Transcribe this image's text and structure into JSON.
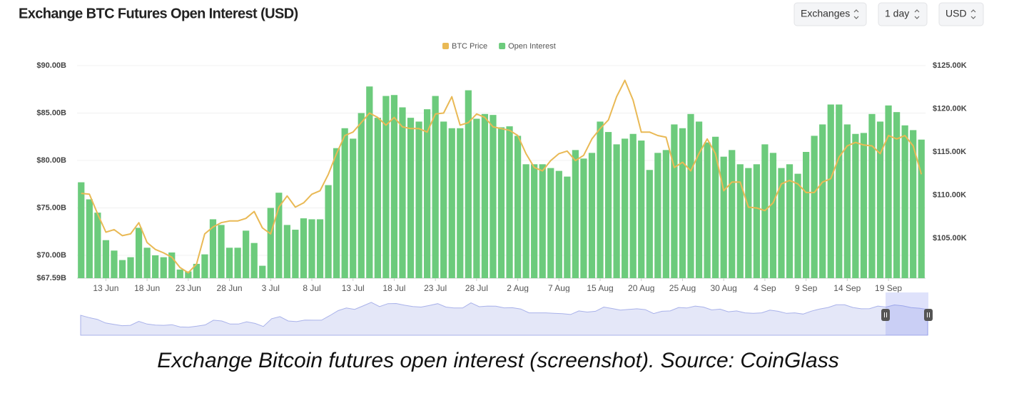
{
  "header": {
    "title": "Exchange BTC Futures Open Interest (USD)",
    "controls": [
      "Exchanges",
      "1 day",
      "USD"
    ]
  },
  "chart_data": {
    "type": "bar",
    "categories": [
      null,
      null,
      null,
      "13 Jun",
      null,
      null,
      null,
      null,
      "18 Jun",
      null,
      null,
      null,
      null,
      "23 Jun",
      null,
      null,
      null,
      null,
      "28 Jun",
      null,
      null,
      null,
      null,
      "3 Jul",
      null,
      null,
      null,
      null,
      "8 Jul",
      null,
      null,
      null,
      null,
      "13 Jul",
      null,
      null,
      null,
      null,
      "18 Jul",
      null,
      null,
      null,
      null,
      "23 Jul",
      null,
      null,
      null,
      null,
      "28 Jul",
      null,
      null,
      null,
      null,
      "2 Aug",
      null,
      null,
      null,
      null,
      "7 Aug",
      null,
      null,
      null,
      null,
      "15 Aug",
      null,
      null,
      null,
      null,
      "20 Aug",
      null,
      null,
      null,
      null,
      "25 Aug",
      null,
      null,
      null,
      null,
      "30 Aug",
      null,
      null,
      null,
      null,
      "4 Sep",
      null,
      null,
      null,
      null,
      "9 Sep",
      null,
      null,
      null,
      null,
      "14 Sep",
      null,
      null,
      null,
      null,
      "19 Sep",
      null,
      null,
      null,
      null
    ],
    "series": [
      {
        "name": "Open Interest",
        "color": "#6ccb7c",
        "values": [
          77.7,
          75.9,
          74.5,
          71.6,
          70.5,
          69.5,
          69.8,
          72.9,
          70.8,
          70.0,
          69.8,
          70.3,
          68.5,
          68.3,
          69.1,
          70.1,
          73.8,
          73.2,
          70.8,
          70.8,
          72.6,
          71.3,
          68.9,
          75.0,
          76.6,
          73.2,
          72.7,
          73.9,
          73.8,
          73.8,
          77.4,
          81.3,
          83.4,
          82.3,
          85.0,
          87.8,
          84.5,
          86.8,
          86.9,
          85.6,
          84.5,
          84.1,
          85.4,
          86.8,
          84.1,
          83.4,
          83.4,
          87.4,
          84.4,
          84.9,
          84.8,
          83.5,
          83.6,
          82.6,
          79.6,
          79.6,
          79.6,
          79.2,
          78.9,
          78.3,
          81.1,
          80.2,
          80.8,
          84.1,
          83.0,
          81.7,
          82.3,
          82.8,
          82.1,
          79.0,
          80.8,
          81.1,
          83.8,
          83.4,
          84.9,
          84.1,
          81.9,
          82.5,
          80.4,
          81.1,
          79.6,
          79.2,
          79.6,
          81.7,
          80.8,
          79.2,
          79.6,
          78.6,
          80.9,
          82.6,
          83.8,
          85.9,
          85.9,
          83.8,
          82.8,
          82.9,
          84.9,
          84.1,
          85.8,
          85.1,
          83.7,
          83.2,
          82.2
        ]
      },
      {
        "name": "BTC Price",
        "color": "#e9b955",
        "type": "line",
        "axis": "y2",
        "values": [
          110.2,
          110.1,
          107.8,
          105.7,
          106.0,
          105.3,
          105.5,
          106.8,
          104.5,
          103.7,
          103.3,
          102.8,
          101.6,
          101.0,
          102.0,
          105.5,
          106.3,
          106.8,
          107.0,
          107.0,
          107.3,
          108.1,
          106.2,
          105.5,
          108.6,
          109.9,
          108.6,
          109.1,
          110.1,
          110.5,
          112.4,
          114.8,
          116.9,
          117.3,
          118.4,
          119.5,
          119.0,
          118.1,
          119.0,
          117.9,
          117.7,
          117.7,
          117.3,
          119.4,
          119.5,
          121.4,
          118.1,
          118.4,
          119.4,
          119.0,
          117.9,
          117.7,
          117.5,
          116.9,
          114.8,
          113.2,
          112.8,
          114.0,
          114.8,
          115.1,
          114.0,
          114.6,
          116.5,
          117.7,
          118.7,
          121.4,
          123.3,
          121.0,
          117.3,
          117.3,
          116.9,
          116.7,
          113.2,
          113.8,
          112.8,
          114.8,
          116.5,
          114.8,
          110.5,
          111.5,
          111.5,
          108.6,
          108.5,
          108.2,
          109.1,
          111.3,
          111.7,
          111.3,
          110.3,
          110.3,
          111.5,
          111.9,
          114.4,
          115.7,
          116.1,
          115.8,
          115.7,
          114.8,
          116.9,
          116.5,
          116.9,
          115.7,
          112.4
        ]
      }
    ],
    "ylim": [
      67.59,
      90
    ],
    "yticks": [
      {
        "value": 67.59,
        "label": "$67.59B"
      },
      {
        "value": 70,
        "label": "$70.00B"
      },
      {
        "value": 75,
        "label": "$75.00B"
      },
      {
        "value": 80,
        "label": "$80.00B"
      },
      {
        "value": 85,
        "label": "$85.00B"
      },
      {
        "value": 90,
        "label": "$90.00B"
      }
    ],
    "y2lim": [
      100.37,
      125
    ],
    "y2ticks": [
      {
        "value": 105,
        "label": "$105.00K"
      },
      {
        "value": 110,
        "label": "$110.00K"
      },
      {
        "value": 115,
        "label": "$115.00K"
      },
      {
        "value": 120,
        "label": "$120.00K"
      },
      {
        "value": 125,
        "label": "$125.00K"
      }
    ],
    "legend": "top",
    "grid": true
  },
  "caption": "Exchange Bitcoin futures open interest (screenshot). Source: CoinGlass"
}
